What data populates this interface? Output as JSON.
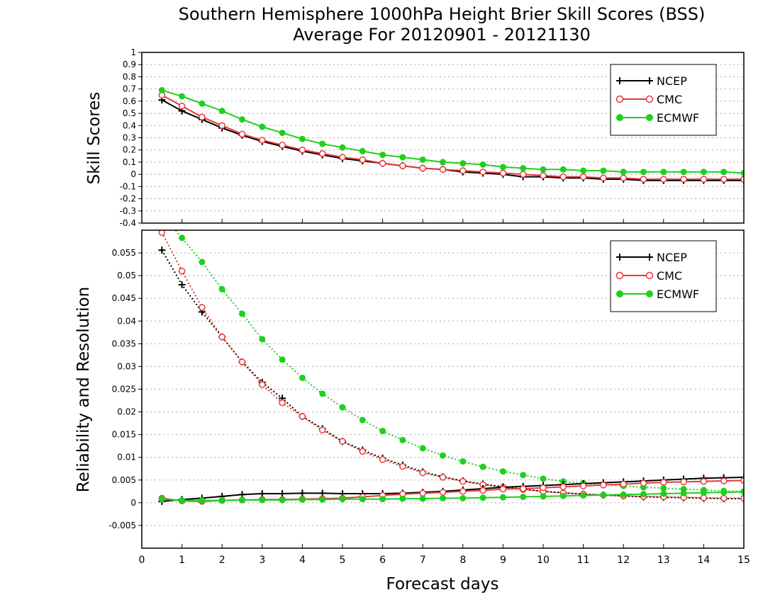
{
  "title_line1": "Southern Hemisphere 1000hPa Height Brier Skill Scores (BSS)",
  "title_line2": "Average For 20120901 - 20121130",
  "xlabel": "Forecast days",
  "colors": {
    "NCEP": "#000000",
    "CMC": "#e83a3a",
    "ECMWF": "#1ed01e",
    "grid": "#aaaaaa"
  },
  "chart_data": [
    {
      "type": "line",
      "panel": "top",
      "ylabel": "Skill Scores",
      "xlim": [
        0,
        15
      ],
      "ylim": [
        -0.4,
        1
      ],
      "xticks": [
        0,
        1,
        2,
        3,
        4,
        5,
        6,
        7,
        8,
        9,
        10,
        11,
        12,
        13,
        14,
        15
      ],
      "yticks": [
        -0.4,
        -0.3,
        -0.2,
        -0.1,
        0,
        0.1,
        0.2,
        0.3,
        0.4,
        0.5,
        0.6,
        0.7,
        0.8,
        0.9,
        1
      ],
      "grid": true,
      "legend": "top-right",
      "x": [
        0.5,
        1,
        1.5,
        2,
        2.5,
        3,
        3.5,
        4,
        4.5,
        5,
        5.5,
        6,
        6.5,
        7,
        7.5,
        8,
        8.5,
        9,
        9.5,
        10,
        10.5,
        11,
        11.5,
        12,
        12.5,
        13,
        13.5,
        14,
        14.5,
        15
      ],
      "series": [
        {
          "name": "NCEP",
          "style": "solid",
          "marker": "plus",
          "values": [
            0.61,
            0.52,
            0.45,
            0.38,
            0.32,
            0.27,
            0.23,
            0.19,
            0.16,
            0.13,
            0.11,
            0.09,
            0.07,
            0.05,
            0.04,
            0.02,
            0.01,
            0,
            -0.02,
            -0.02,
            -0.03,
            -0.03,
            -0.04,
            -0.04,
            -0.05,
            -0.05,
            -0.05,
            -0.05,
            -0.05,
            -0.05
          ]
        },
        {
          "name": "CMC",
          "style": "solid",
          "marker": "circle-open",
          "values": [
            0.65,
            0.56,
            0.47,
            0.4,
            0.33,
            0.28,
            0.24,
            0.2,
            0.17,
            0.14,
            0.12,
            0.09,
            0.07,
            0.05,
            0.04,
            0.03,
            0.02,
            0.01,
            0,
            -0.01,
            -0.02,
            -0.02,
            -0.03,
            -0.03,
            -0.04,
            -0.04,
            -0.04,
            -0.04,
            -0.04,
            -0.04
          ]
        },
        {
          "name": "ECMWF",
          "style": "solid",
          "marker": "circle-filled",
          "values": [
            0.69,
            0.64,
            0.58,
            0.52,
            0.45,
            0.39,
            0.34,
            0.29,
            0.25,
            0.22,
            0.19,
            0.16,
            0.14,
            0.12,
            0.1,
            0.09,
            0.08,
            0.06,
            0.05,
            0.04,
            0.04,
            0.03,
            0.03,
            0.02,
            0.02,
            0.02,
            0.02,
            0.02,
            0.02,
            0.01
          ]
        }
      ]
    },
    {
      "type": "line",
      "panel": "bottom",
      "ylabel": "Reliability and Resolution",
      "xlim": [
        0,
        15
      ],
      "ylim": [
        -0.01,
        0.06
      ],
      "xticks": [
        0,
        1,
        2,
        3,
        4,
        5,
        6,
        7,
        8,
        9,
        10,
        11,
        12,
        13,
        14,
        15
      ],
      "yticks": [
        -0.005,
        0,
        0.005,
        0.01,
        0.015,
        0.02,
        0.025,
        0.03,
        0.035,
        0.04,
        0.045,
        0.05,
        0.055
      ],
      "ytick_labels": [
        "-0.005",
        "0",
        "0.005",
        "0.01",
        "0.015",
        "0.02",
        "0.025",
        "0.03",
        "0.035",
        "0.04",
        "0.045",
        "0.05",
        "0.055"
      ],
      "grid": true,
      "legend": "top-right",
      "x": [
        0.5,
        1,
        1.5,
        2,
        2.5,
        3,
        3.5,
        4,
        4.5,
        5,
        5.5,
        6,
        6.5,
        7,
        7.5,
        8,
        8.5,
        9,
        9.5,
        10,
        10.5,
        11,
        11.5,
        12,
        12.5,
        13,
        13.5,
        14,
        14.5,
        15
      ],
      "series": [
        {
          "name": "NCEP",
          "component": "resolution",
          "style": "dotted",
          "marker": "plus",
          "values": [
            0.0556,
            0.048,
            0.042,
            0.0365,
            0.031,
            0.0265,
            0.023,
            0.019,
            0.0163,
            0.0135,
            0.0116,
            0.0098,
            0.0083,
            0.0068,
            0.0057,
            0.0048,
            0.0041,
            0.0035,
            0.003,
            0.0025,
            0.0022,
            0.0019,
            0.0017,
            0.0015,
            0.0013,
            0.0012,
            0.0011,
            0.001,
            0.0009,
            0.0009
          ]
        },
        {
          "name": "CMC",
          "component": "resolution",
          "style": "dotted",
          "marker": "circle-open",
          "values": [
            0.0595,
            0.051,
            0.043,
            0.0365,
            0.031,
            0.026,
            0.022,
            0.019,
            0.016,
            0.0135,
            0.0113,
            0.0095,
            0.008,
            0.0066,
            0.0056,
            0.0047,
            0.004,
            0.0034,
            0.0029,
            0.0025,
            0.0021,
            0.0019,
            0.0017,
            0.0015,
            0.0014,
            0.0013,
            0.0012,
            0.0011,
            0.001,
            0.001
          ]
        },
        {
          "name": "ECMWF",
          "component": "resolution",
          "style": "dotted",
          "marker": "circle-filled",
          "values": [
            0.0635,
            0.0583,
            0.053,
            0.047,
            0.0416,
            0.036,
            0.0315,
            0.0275,
            0.024,
            0.021,
            0.0182,
            0.0158,
            0.0138,
            0.012,
            0.0104,
            0.0091,
            0.0079,
            0.0069,
            0.0061,
            0.0053,
            0.0047,
            0.0043,
            0.004,
            0.0037,
            0.0034,
            0.0032,
            0.003,
            0.0028,
            0.0026,
            0.0025
          ]
        },
        {
          "name": "NCEP",
          "component": "reliability",
          "style": "solid",
          "marker": "plus",
          "values": [
            0.0003,
            0.0007,
            0.001,
            0.0014,
            0.0018,
            0.002,
            0.002,
            0.0021,
            0.0021,
            0.002,
            0.002,
            0.002,
            0.0021,
            0.0023,
            0.0025,
            0.0028,
            0.0031,
            0.0034,
            0.0036,
            0.0038,
            0.004,
            0.0042,
            0.0044,
            0.0046,
            0.0048,
            0.005,
            0.0052,
            0.0054,
            0.0055,
            0.0056
          ]
        },
        {
          "name": "CMC",
          "component": "reliability",
          "style": "solid",
          "marker": "circle-open",
          "values": [
            0.001,
            0.0004,
            0.0003,
            0.0005,
            0.0006,
            0.0007,
            0.0007,
            0.0008,
            0.0009,
            0.001,
            0.0013,
            0.0016,
            0.0019,
            0.0021,
            0.0023,
            0.0025,
            0.0027,
            0.003,
            0.0031,
            0.0033,
            0.0035,
            0.0037,
            0.0039,
            0.0041,
            0.0043,
            0.0045,
            0.0046,
            0.0047,
            0.0048,
            0.0049
          ]
        },
        {
          "name": "ECMWF",
          "component": "reliability",
          "style": "solid",
          "marker": "circle-filled",
          "values": [
            0.0008,
            0.0005,
            0.0005,
            0.0005,
            0.0006,
            0.0006,
            0.0006,
            0.0007,
            0.0007,
            0.0008,
            0.0008,
            0.0008,
            0.0009,
            0.0009,
            0.001,
            0.001,
            0.0011,
            0.0012,
            0.0013,
            0.0014,
            0.0015,
            0.0016,
            0.0017,
            0.0018,
            0.0019,
            0.002,
            0.0021,
            0.0022,
            0.0023,
            0.0024
          ]
        }
      ]
    }
  ]
}
